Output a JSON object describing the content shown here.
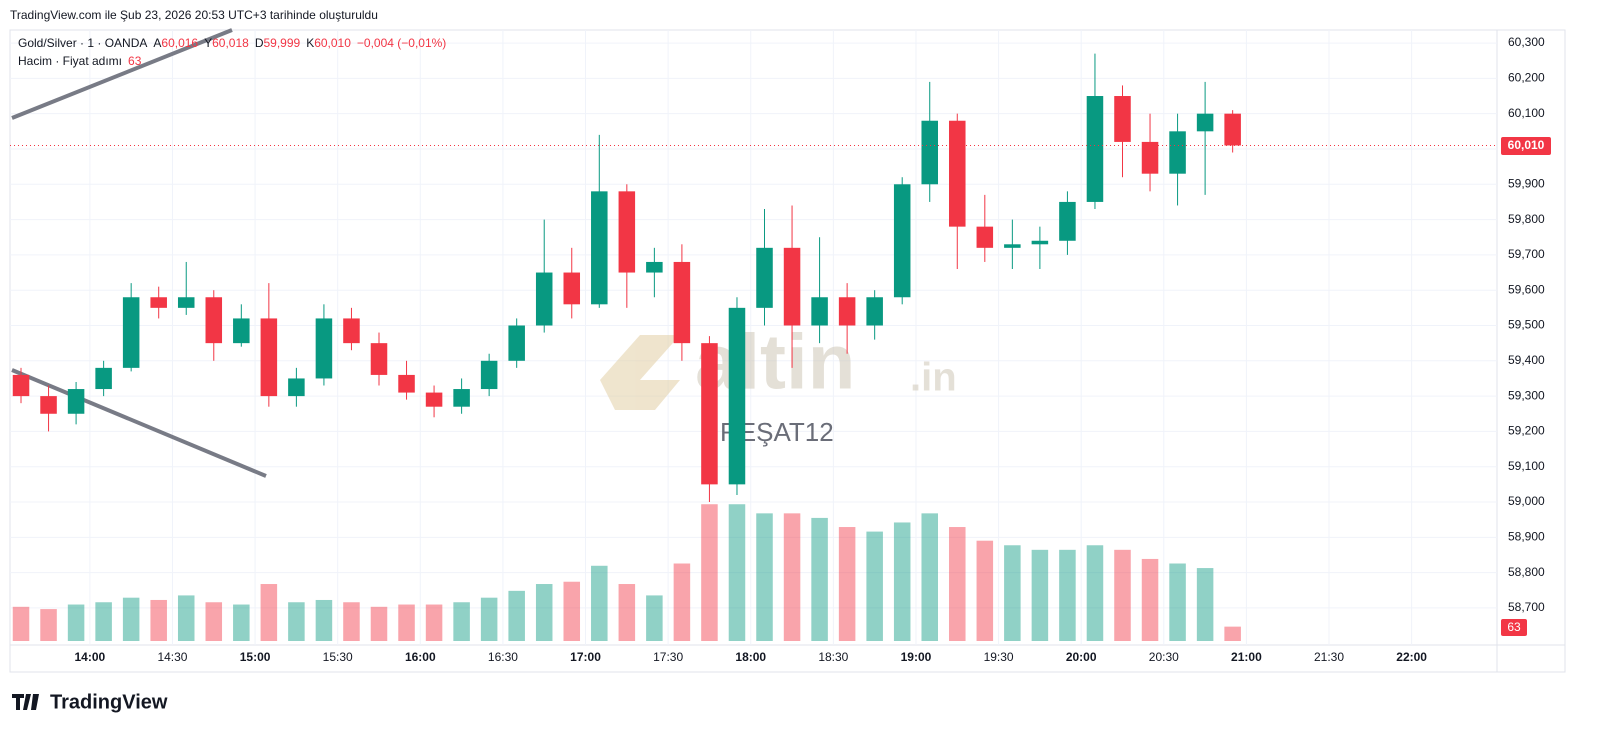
{
  "header": {
    "caption": "TradingView.com ile Şub 23, 2026 20:53 UTC+3 tarihinde oluşturuldu"
  },
  "legend": {
    "symbol": "Gold/Silver · 1 · OANDA",
    "ohlc": [
      {
        "key": "A",
        "value": "60,016"
      },
      {
        "key": "Y",
        "value": "60,018"
      },
      {
        "key": "D",
        "value": "59,999"
      },
      {
        "key": "K",
        "value": "60,010"
      }
    ],
    "change": "−0,004 (−0,01%)",
    "volume_title": "Hacim · Fiyat adımı",
    "volume_value": "63"
  },
  "watermark": {
    "name": "altin",
    "suffix": ".in",
    "user": "REŞAT12"
  },
  "footer": {
    "brand": "TradingView"
  },
  "chart_data": {
    "type": "candlestick",
    "x": [
      "13:30",
      "13:40",
      "13:50",
      "14:00",
      "14:10",
      "14:20",
      "14:30",
      "14:40",
      "14:50",
      "15:00",
      "15:10",
      "15:20",
      "15:30",
      "15:40",
      "15:50",
      "16:00",
      "16:10",
      "16:20",
      "16:30",
      "16:40",
      "16:50",
      "17:00",
      "17:10",
      "17:20",
      "17:30",
      "17:40",
      "17:50",
      "18:00",
      "18:10",
      "18:20",
      "18:30",
      "18:40",
      "18:50",
      "19:00",
      "19:10",
      "19:20",
      "19:30",
      "19:40",
      "19:50",
      "20:00",
      "20:10",
      "20:20",
      "20:30",
      "20:40",
      "20:50"
    ],
    "open": [
      59.36,
      59.3,
      59.25,
      59.32,
      59.38,
      59.58,
      59.55,
      59.58,
      59.45,
      59.52,
      59.3,
      59.35,
      59.52,
      59.45,
      59.36,
      59.31,
      59.27,
      59.32,
      59.4,
      59.5,
      59.65,
      59.56,
      59.88,
      59.65,
      59.68,
      59.45,
      59.05,
      59.55,
      59.72,
      59.5,
      59.58,
      59.5,
      59.58,
      59.9,
      60.08,
      59.78,
      59.72,
      59.73,
      59.74,
      59.85,
      60.15,
      60.02,
      59.93,
      60.05,
      60.1
    ],
    "high": [
      59.38,
      59.33,
      59.34,
      59.4,
      59.62,
      59.61,
      59.68,
      59.6,
      59.56,
      59.62,
      59.38,
      59.56,
      59.55,
      59.48,
      59.4,
      59.33,
      59.35,
      59.42,
      59.52,
      59.8,
      59.72,
      60.04,
      59.9,
      59.72,
      59.73,
      59.47,
      59.58,
      59.83,
      59.84,
      59.75,
      59.62,
      59.6,
      59.92,
      60.19,
      60.1,
      59.87,
      59.8,
      59.78,
      59.88,
      60.27,
      60.18,
      60.1,
      60.1,
      60.19,
      60.11
    ],
    "low": [
      59.28,
      59.2,
      59.22,
      59.3,
      59.37,
      59.52,
      59.53,
      59.4,
      59.44,
      59.27,
      59.27,
      59.33,
      59.43,
      59.33,
      59.29,
      59.24,
      59.25,
      59.3,
      59.38,
      59.48,
      59.52,
      59.55,
      59.55,
      59.58,
      59.4,
      59.0,
      59.02,
      59.5,
      59.38,
      59.45,
      59.42,
      59.46,
      59.56,
      59.85,
      59.66,
      59.68,
      59.66,
      59.66,
      59.7,
      59.83,
      59.92,
      59.88,
      59.84,
      59.87,
      59.99
    ],
    "close": [
      59.3,
      59.25,
      59.32,
      59.38,
      59.58,
      59.55,
      59.58,
      59.45,
      59.52,
      59.3,
      59.35,
      59.52,
      59.45,
      59.36,
      59.31,
      59.27,
      59.32,
      59.4,
      59.5,
      59.65,
      59.56,
      59.88,
      59.65,
      59.68,
      59.45,
      59.05,
      59.55,
      59.72,
      59.5,
      59.58,
      59.5,
      59.58,
      59.9,
      60.08,
      59.78,
      59.72,
      59.73,
      59.74,
      59.85,
      60.15,
      60.02,
      59.93,
      60.05,
      60.1,
      60.01
    ],
    "volume": [
      150,
      140,
      160,
      170,
      190,
      180,
      200,
      170,
      160,
      250,
      170,
      180,
      170,
      150,
      160,
      160,
      170,
      190,
      220,
      250,
      260,
      330,
      250,
      200,
      340,
      600,
      600,
      560,
      560,
      540,
      500,
      480,
      520,
      560,
      500,
      440,
      420,
      400,
      400,
      420,
      400,
      360,
      340,
      320,
      63
    ],
    "up_color": "#089981",
    "down_color": "#f23645",
    "ylim": [
      58.595,
      60.337
    ],
    "yticks": [
      {
        "value": 58.7,
        "label": "58,700"
      },
      {
        "value": 58.8,
        "label": "58,800"
      },
      {
        "value": 58.9,
        "label": "58,900"
      },
      {
        "value": 59.0,
        "label": "59,000"
      },
      {
        "value": 59.1,
        "label": "59,100"
      },
      {
        "value": 59.2,
        "label": "59,200"
      },
      {
        "value": 59.3,
        "label": "59,300"
      },
      {
        "value": 59.4,
        "label": "59,400"
      },
      {
        "value": 59.5,
        "label": "59,500"
      },
      {
        "value": 59.6,
        "label": "59,600"
      },
      {
        "value": 59.7,
        "label": "59,700"
      },
      {
        "value": 59.8,
        "label": "59,800"
      },
      {
        "value": 59.9,
        "label": "59,900"
      },
      {
        "value": 60.0,
        "label": "60,000"
      },
      {
        "value": 60.1,
        "label": "60,100"
      },
      {
        "value": 60.2,
        "label": "60,200"
      },
      {
        "value": 60.3,
        "label": "60,300"
      }
    ],
    "xlim": [
      "13:31",
      "22:31"
    ],
    "xticks": [
      "14:00",
      "14:30",
      "15:00",
      "15:30",
      "16:00",
      "16:30",
      "17:00",
      "17:30",
      "18:00",
      "18:30",
      "19:00",
      "19:30",
      "20:00",
      "20:30",
      "21:00",
      "21:30",
      "22:00"
    ],
    "volume_ylim": [
      0,
      680
    ],
    "grid": true
  }
}
